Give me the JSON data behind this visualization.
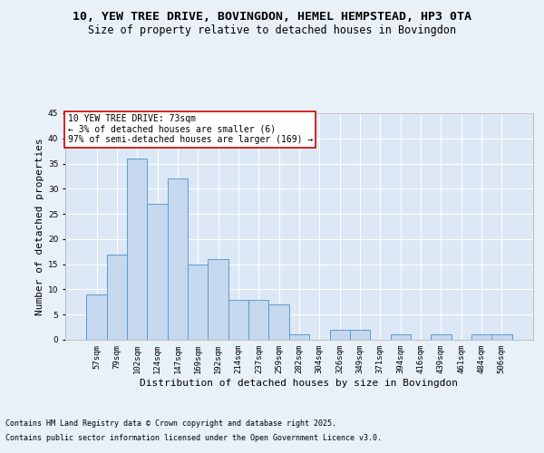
{
  "title1": "10, YEW TREE DRIVE, BOVINGDON, HEMEL HEMPSTEAD, HP3 0TA",
  "title2": "Size of property relative to detached houses in Bovingdon",
  "xlabel": "Distribution of detached houses by size in Bovingdon",
  "ylabel": "Number of detached properties",
  "annotation_line1": "10 YEW TREE DRIVE: 73sqm",
  "annotation_line2": "← 3% of detached houses are smaller (6)",
  "annotation_line3": "97% of semi-detached houses are larger (169) →",
  "categories": [
    "57sqm",
    "79sqm",
    "102sqm",
    "124sqm",
    "147sqm",
    "169sqm",
    "192sqm",
    "214sqm",
    "237sqm",
    "259sqm",
    "282sqm",
    "304sqm",
    "326sqm",
    "349sqm",
    "371sqm",
    "394sqm",
    "416sqm",
    "439sqm",
    "461sqm",
    "484sqm",
    "506sqm"
  ],
  "values": [
    9,
    17,
    36,
    27,
    32,
    15,
    16,
    8,
    8,
    7,
    1,
    0,
    2,
    2,
    0,
    1,
    0,
    1,
    0,
    1,
    1
  ],
  "bar_color": "#c5d8ed",
  "bar_edge_color": "#5b9bd5",
  "annotation_box_color": "#ffffff",
  "annotation_box_edge_color": "#cc0000",
  "bg_color": "#e8f0f8",
  "plot_bg_color": "#dce8f5",
  "grid_color": "#ffffff",
  "ylim": [
    0,
    45
  ],
  "yticks": [
    0,
    5,
    10,
    15,
    20,
    25,
    30,
    35,
    40,
    45
  ],
  "footer1": "Contains HM Land Registry data © Crown copyright and database right 2025.",
  "footer2": "Contains public sector information licensed under the Open Government Licence v3.0.",
  "title_fontsize": 9.5,
  "subtitle_fontsize": 8.5,
  "axis_label_fontsize": 8,
  "tick_fontsize": 6.5,
  "annotation_fontsize": 7,
  "footer_fontsize": 6
}
